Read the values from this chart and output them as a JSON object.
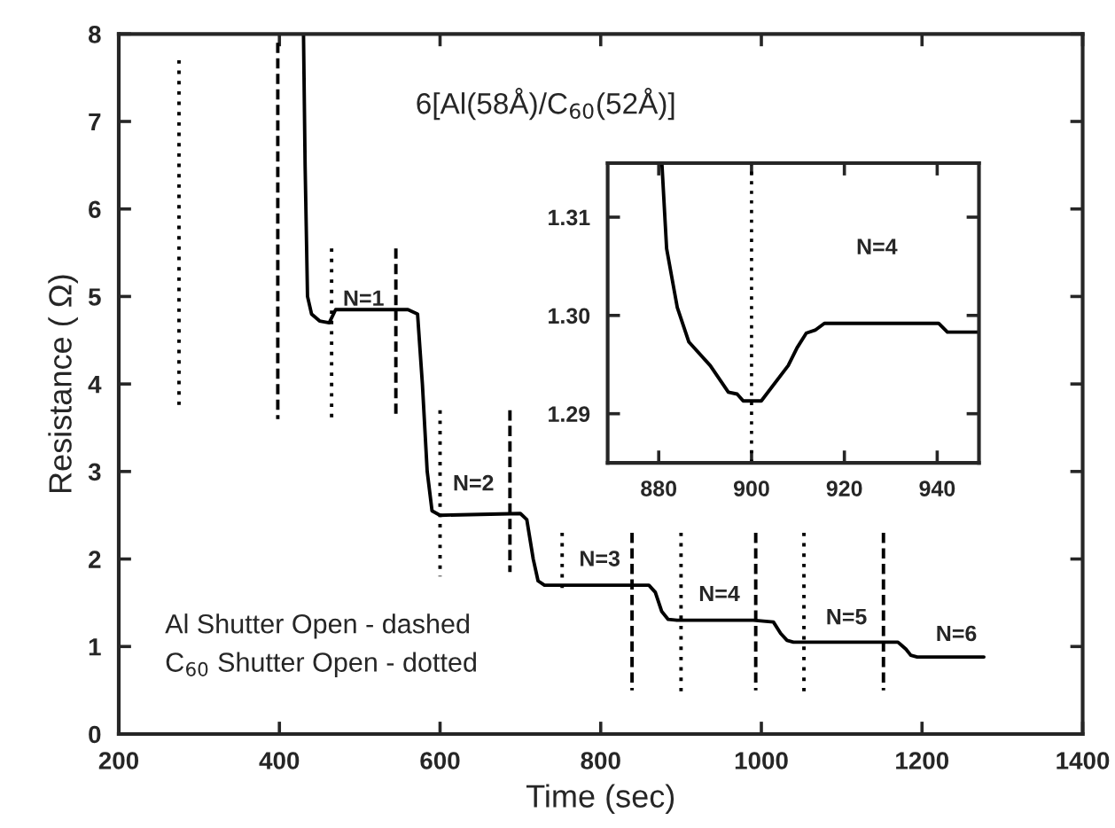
{
  "chart_data": [
    {
      "type": "line",
      "xlabel": "Time (sec)",
      "ylabel": "Resistance ( Ω)",
      "xlim": [
        200,
        1400
      ],
      "ylim": [
        0,
        8
      ],
      "xticks": [
        200,
        400,
        600,
        800,
        1000,
        1200,
        1400
      ],
      "yticks": [
        0,
        1,
        2,
        3,
        4,
        5,
        6,
        7,
        8
      ],
      "grid": false,
      "annotations": [
        "6[Al(58Å)/C$_{60}$(52Å)]",
        "Al Shutter Open - dashed",
        "C$_{60}$ Shutter Open - dotted",
        "N=1",
        "N=2",
        "N=3",
        "N=4",
        "N=5",
        "N=6"
      ],
      "series": [
        {
          "color": "#000000",
          "line_style": "solid",
          "x": [
            430,
            432,
            435,
            440,
            450,
            462,
            470,
            480,
            560,
            572,
            578,
            584,
            590,
            600,
            700,
            708,
            716,
            722,
            730,
            740,
            860,
            868,
            876,
            884,
            895,
            990,
            1015,
            1024,
            1032,
            1040,
            1170,
            1180,
            1186,
            1194,
            1277
          ],
          "values": [
            8.0,
            6.5,
            5.0,
            4.8,
            4.72,
            4.7,
            4.85,
            4.85,
            4.85,
            4.8,
            4.0,
            3.0,
            2.55,
            2.5,
            2.52,
            2.45,
            2.0,
            1.75,
            1.7,
            1.7,
            1.7,
            1.62,
            1.4,
            1.31,
            1.3,
            1.3,
            1.28,
            1.15,
            1.07,
            1.05,
            1.05,
            0.97,
            0.9,
            0.88,
            0.88
          ]
        },
        {
          "color": "#000000",
          "line_style": "dotted",
          "x": [
            275,
            275
          ],
          "values": [
            7.7,
            3.7
          ]
        },
        {
          "color": "#000000",
          "line_style": "dashed",
          "x": [
            398,
            398
          ],
          "values": [
            7.9,
            3.6
          ]
        },
        {
          "color": "#000000",
          "line_style": "dotted",
          "x": [
            465,
            465
          ],
          "values": [
            5.55,
            3.6
          ]
        },
        {
          "color": "#000000",
          "line_style": "dashed",
          "x": [
            545,
            545
          ],
          "values": [
            5.55,
            3.6
          ]
        },
        {
          "color": "#000000",
          "line_style": "dotted",
          "x": [
            600,
            600
          ],
          "values": [
            3.7,
            1.8
          ]
        },
        {
          "color": "#000000",
          "line_style": "dashed",
          "x": [
            687,
            687
          ],
          "values": [
            3.7,
            1.85
          ]
        },
        {
          "color": "#000000",
          "line_style": "dotted",
          "x": [
            752,
            752
          ],
          "values": [
            2.3,
            1.65
          ]
        },
        {
          "color": "#000000",
          "line_style": "dashed",
          "x": [
            839,
            839
          ],
          "values": [
            2.3,
            0.5
          ]
        },
        {
          "color": "#000000",
          "line_style": "dotted",
          "x": [
            900,
            900
          ],
          "values": [
            2.3,
            0.42
          ]
        },
        {
          "color": "#000000",
          "line_style": "dashed",
          "x": [
            993,
            993
          ],
          "values": [
            2.3,
            0.5
          ]
        },
        {
          "color": "#000000",
          "line_style": "dotted",
          "x": [
            1053,
            1053
          ],
          "values": [
            2.3,
            0.42
          ]
        },
        {
          "color": "#000000",
          "line_style": "dashed",
          "x": [
            1152,
            1152
          ],
          "values": [
            2.3,
            0.5
          ]
        }
      ]
    },
    {
      "type": "line",
      "xlim": [
        869,
        949
      ],
      "ylim": [
        1.285,
        1.3155
      ],
      "xticks": [
        880,
        900,
        920,
        940
      ],
      "yticks": [
        1.29,
        {
          "value": 1.3,
          "label": "1.30"
        },
        1.31
      ],
      "grid": false,
      "annotations": [
        "N=4"
      ],
      "ref_lines": [
        {
          "axis": "x",
          "value": 900,
          "line_style": "dotted",
          "color": "#000000"
        }
      ],
      "series": [
        {
          "color": "#000000",
          "line_style": "solid",
          "x": [
            880.7,
            881.7,
            884.0,
            886.5,
            891.1,
            895.0,
            896.9,
            898.2,
            902.1,
            907.9,
            909.8,
            911.8,
            913.7,
            915.7,
            940.3,
            942.2,
            949
          ],
          "values": [
            1.3153,
            1.3068,
            1.3008,
            1.2973,
            1.2949,
            1.2922,
            1.292,
            1.2913,
            1.2913,
            1.2949,
            1.2967,
            1.2982,
            1.2985,
            1.2992,
            1.2992,
            1.2983,
            1.2983
          ]
        }
      ]
    }
  ]
}
